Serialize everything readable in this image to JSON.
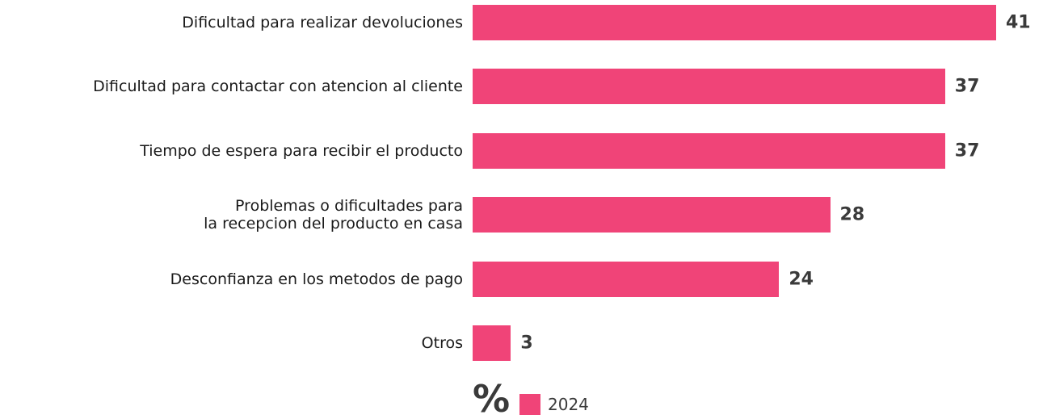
{
  "chart_data": {
    "type": "bar",
    "orientation": "horizontal",
    "categories": [
      "Dificultad para realizar devoluciones",
      "Dificultad para contactar con atencion al cliente",
      "Tiempo de espera para recibir el producto",
      "Problemas o dificultades para\nla recepcion del producto en casa",
      "Desconfianza en los metodos de pago",
      "Otros"
    ],
    "series": [
      {
        "name": "2024",
        "color": "#f04478",
        "values": [
          41,
          37,
          37,
          28,
          24,
          3
        ]
      }
    ],
    "unit": "%"
  }
}
